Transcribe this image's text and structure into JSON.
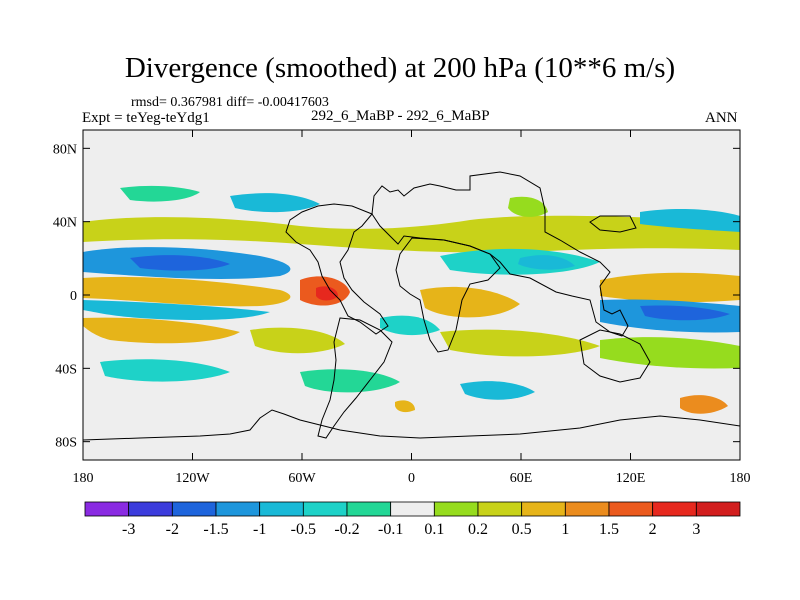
{
  "title": "Divergence (smoothed) at 200 hPa (10**6 m/s)",
  "stats": "rmsd= 0.367981 diff= -0.00417603",
  "expt": "Expt = teYeg-teYdg1",
  "case": "292_6_MaBP - 292_6_MaBP",
  "season": "ANN",
  "axes": {
    "lat_labels": [
      "80N",
      "40N",
      "0",
      "40S",
      "80S"
    ],
    "lat_values": [
      80,
      40,
      0,
      -40,
      -80
    ],
    "lon_labels": [
      "180",
      "120W",
      "60W",
      "0",
      "60E",
      "120E",
      "180"
    ],
    "lon_values": [
      -180,
      -120,
      -60,
      0,
      60,
      120,
      180
    ],
    "lon_range": [
      -180,
      180
    ],
    "lat_range": [
      -90,
      90
    ]
  },
  "colorbar": {
    "labels": [
      "-3",
      "-2",
      "-1.5",
      "-1",
      "-0.5",
      "-0.2",
      "-0.1",
      "0.1",
      "0.2",
      "0.5",
      "1",
      "1.5",
      "2",
      "3"
    ],
    "colors": [
      "#8a2be2",
      "#3c3cdc",
      "#1e64dc",
      "#1e96dc",
      "#19b9d7",
      "#1ed2c8",
      "#23d796",
      "#eeeeee",
      "#96dc1e",
      "#c8d219",
      "#e6b419",
      "#eb8c1e",
      "#eb5a1e",
      "#e6281e",
      "#d21e1e"
    ]
  },
  "colors": {
    "background_field": "#eeeeee",
    "coastline": "#000000"
  }
}
